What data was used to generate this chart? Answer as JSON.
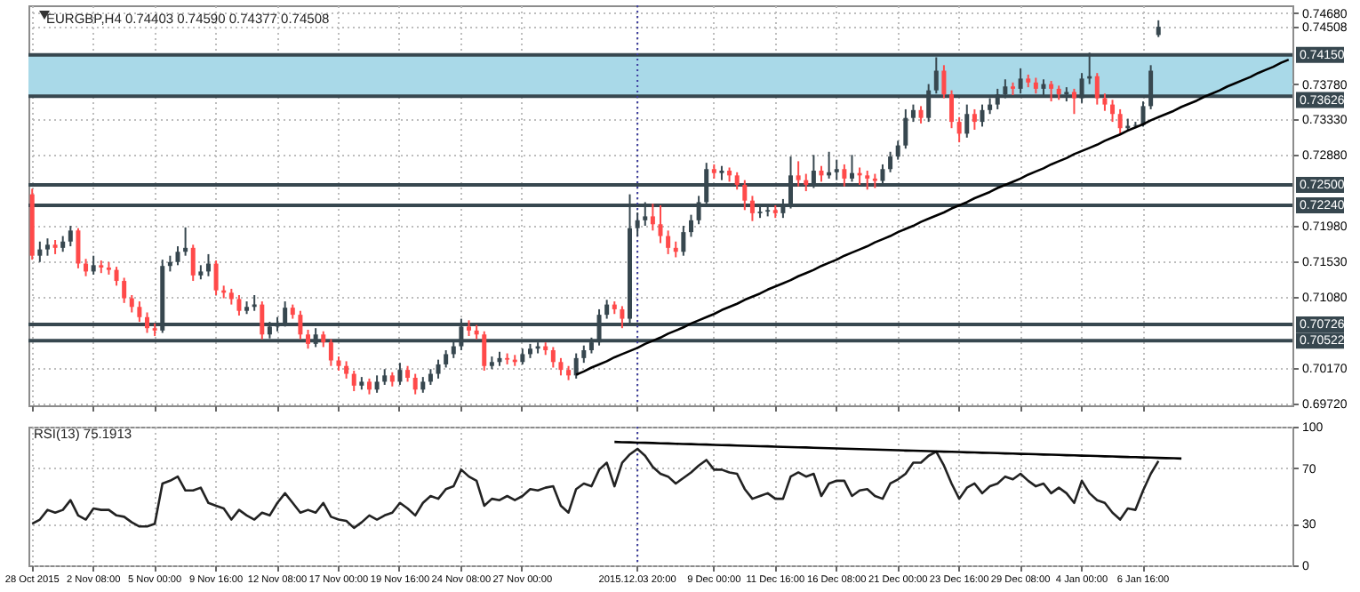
{
  "chart_data": [
    {
      "type": "candlestick",
      "title": "EURGBP,H4  0.74403 0.74590 0.74377 0.74508",
      "categories": [
        "28 Oct 2015",
        null,
        null,
        null,
        null,
        null,
        null,
        null,
        "2 Nov 08:00",
        null,
        null,
        null,
        null,
        null,
        null,
        null,
        "5 Nov 00:00",
        null,
        null,
        null,
        null,
        null,
        null,
        null,
        "9 Nov 16:00",
        null,
        null,
        null,
        null,
        null,
        null,
        null,
        "12 Nov 08:00",
        null,
        null,
        null,
        null,
        null,
        null,
        null,
        "17 Nov 00:00",
        null,
        null,
        null,
        null,
        null,
        null,
        null,
        "19 Nov 16:00",
        null,
        null,
        null,
        null,
        null,
        null,
        null,
        "24 Nov 08:00",
        null,
        null,
        null,
        null,
        null,
        null,
        null,
        "27 Nov 00:00",
        null,
        null,
        null,
        null,
        null,
        null,
        null,
        null,
        null,
        null,
        null,
        null,
        null,
        null,
        "2015.12.03 20:00",
        null,
        null,
        null,
        null,
        null,
        null,
        null,
        null,
        null,
        "9 Dec 00:00",
        null,
        null,
        null,
        null,
        null,
        null,
        null,
        "11 Dec 16:00",
        null,
        null,
        null,
        null,
        null,
        null,
        null,
        "16 Dec 08:00",
        null,
        null,
        null,
        null,
        null,
        null,
        null,
        "21 Dec 00:00",
        null,
        null,
        null,
        null,
        null,
        null,
        null,
        "23 Dec 16:00",
        null,
        null,
        null,
        null,
        null,
        null,
        null,
        "29 Dec 08:00",
        null,
        null,
        null,
        null,
        null,
        null,
        null,
        "4 Jan 00:00",
        null,
        null,
        null,
        null,
        null,
        null,
        null,
        "6 Jan 16:00",
        null,
        null,
        null,
        null,
        null,
        null,
        null,
        null,
        null,
        null,
        null,
        null,
        null,
        null,
        null,
        null,
        null,
        null,
        null
      ],
      "ohlc": [
        [
          0.7238,
          0.7245,
          0.7155,
          0.716
        ],
        [
          0.716,
          0.7178,
          0.7152,
          0.7168
        ],
        [
          0.7168,
          0.7182,
          0.716,
          0.7174
        ],
        [
          0.7174,
          0.718,
          0.7162,
          0.717
        ],
        [
          0.717,
          0.7185,
          0.7165,
          0.7178
        ],
        [
          0.7178,
          0.7198,
          0.7172,
          0.7192
        ],
        [
          0.7192,
          0.7195,
          0.7144,
          0.715
        ],
        [
          0.715,
          0.7156,
          0.7134,
          0.714
        ],
        [
          0.714,
          0.716,
          0.7136,
          0.7148
        ],
        [
          0.7148,
          0.7154,
          0.7138,
          0.7145
        ],
        [
          0.7145,
          0.7152,
          0.7136,
          0.7142
        ],
        [
          0.7142,
          0.7146,
          0.7122,
          0.7128
        ],
        [
          0.7128,
          0.7132,
          0.71,
          0.7106
        ],
        [
          0.7106,
          0.711,
          0.7088,
          0.7095
        ],
        [
          0.7095,
          0.7102,
          0.7076,
          0.7082
        ],
        [
          0.7082,
          0.7088,
          0.7062,
          0.7068
        ],
        [
          0.7068,
          0.7074,
          0.7058,
          0.7065
        ],
        [
          0.7065,
          0.7155,
          0.7062,
          0.7147
        ],
        [
          0.7147,
          0.716,
          0.714,
          0.7152
        ],
        [
          0.7152,
          0.7172,
          0.7148,
          0.7165
        ],
        [
          0.7165,
          0.7196,
          0.716,
          0.717
        ],
        [
          0.717,
          0.7174,
          0.7128,
          0.7135
        ],
        [
          0.7135,
          0.7148,
          0.713,
          0.714
        ],
        [
          0.714,
          0.7162,
          0.7134,
          0.715
        ],
        [
          0.715,
          0.7154,
          0.711,
          0.7116
        ],
        [
          0.7116,
          0.7122,
          0.7106,
          0.7113
        ],
        [
          0.7113,
          0.7118,
          0.7098,
          0.7105
        ],
        [
          0.7105,
          0.711,
          0.7084,
          0.709
        ],
        [
          0.709,
          0.7102,
          0.7086,
          0.7095
        ],
        [
          0.7095,
          0.711,
          0.709,
          0.7098
        ],
        [
          0.7098,
          0.7102,
          0.7054,
          0.706
        ],
        [
          0.706,
          0.7076,
          0.7055,
          0.707
        ],
        [
          0.707,
          0.7082,
          0.7064,
          0.7075
        ],
        [
          0.7075,
          0.7102,
          0.707,
          0.7094
        ],
        [
          0.7094,
          0.7098,
          0.708,
          0.7085
        ],
        [
          0.7085,
          0.709,
          0.7054,
          0.706
        ],
        [
          0.706,
          0.7066,
          0.7042,
          0.7048
        ],
        [
          0.7048,
          0.7068,
          0.7044,
          0.706
        ],
        [
          0.706,
          0.7064,
          0.7044,
          0.705
        ],
        [
          0.705,
          0.7054,
          0.702,
          0.7027
        ],
        [
          0.7027,
          0.7032,
          0.7014,
          0.702
        ],
        [
          0.702,
          0.7026,
          0.7004,
          0.701
        ],
        [
          0.701,
          0.7014,
          0.6988,
          0.6995
        ],
        [
          0.6995,
          0.7006,
          0.699,
          0.7
        ],
        [
          0.7,
          0.7004,
          0.6984,
          0.699
        ],
        [
          0.699,
          0.7008,
          0.6986,
          0.7
        ],
        [
          0.7,
          0.7016,
          0.6996,
          0.7008
        ],
        [
          0.7008,
          0.7012,
          0.6994,
          0.7
        ],
        [
          0.7,
          0.7024,
          0.6996,
          0.7015
        ],
        [
          0.7015,
          0.702,
          0.7,
          0.7005
        ],
        [
          0.7005,
          0.701,
          0.6984,
          0.699
        ],
        [
          0.699,
          0.7006,
          0.6986,
          0.7
        ],
        [
          0.7,
          0.7016,
          0.6996,
          0.701
        ],
        [
          0.701,
          0.7028,
          0.7004,
          0.7022
        ],
        [
          0.7022,
          0.704,
          0.7018,
          0.7035
        ],
        [
          0.7035,
          0.7052,
          0.703,
          0.7045
        ],
        [
          0.7045,
          0.708,
          0.704,
          0.707
        ],
        [
          0.707,
          0.7078,
          0.7058,
          0.7065
        ],
        [
          0.7065,
          0.7072,
          0.7054,
          0.706
        ],
        [
          0.706,
          0.7064,
          0.7014,
          0.702
        ],
        [
          0.702,
          0.7032,
          0.7016,
          0.7025
        ],
        [
          0.7025,
          0.7038,
          0.702,
          0.703
        ],
        [
          0.703,
          0.7036,
          0.7022,
          0.7028
        ],
        [
          0.7028,
          0.7034,
          0.702,
          0.7025
        ],
        [
          0.7025,
          0.7042,
          0.7022,
          0.7035
        ],
        [
          0.7035,
          0.7048,
          0.703,
          0.7042
        ],
        [
          0.7042,
          0.705,
          0.7036,
          0.7045
        ],
        [
          0.7045,
          0.705,
          0.7034,
          0.704
        ],
        [
          0.704,
          0.7044,
          0.7018,
          0.7025
        ],
        [
          0.7025,
          0.703,
          0.7008,
          0.7015
        ],
        [
          0.7015,
          0.702,
          0.7002,
          0.7008
        ],
        [
          0.7008,
          0.7036,
          0.7004,
          0.703
        ],
        [
          0.703,
          0.7046,
          0.7024,
          0.704
        ],
        [
          0.704,
          0.7056,
          0.7036,
          0.705
        ],
        [
          0.705,
          0.7092,
          0.7046,
          0.7085
        ],
        [
          0.7085,
          0.7104,
          0.708,
          0.7098
        ],
        [
          0.7098,
          0.7102,
          0.7086,
          0.7092
        ],
        [
          0.7092,
          0.7096,
          0.7068,
          0.708
        ],
        [
          0.708,
          0.7238,
          0.7074,
          0.7195
        ],
        [
          0.7195,
          0.7215,
          0.7185,
          0.7205
        ],
        [
          0.7205,
          0.7228,
          0.7198,
          0.721
        ],
        [
          0.721,
          0.7226,
          0.7192,
          0.72
        ],
        [
          0.72,
          0.7224,
          0.7176,
          0.7185
        ],
        [
          0.7185,
          0.7192,
          0.7162,
          0.717
        ],
        [
          0.717,
          0.7178,
          0.7158,
          0.7165
        ],
        [
          0.7165,
          0.7198,
          0.716,
          0.719
        ],
        [
          0.719,
          0.7212,
          0.7184,
          0.7205
        ],
        [
          0.7205,
          0.7236,
          0.72,
          0.7228
        ],
        [
          0.7228,
          0.7278,
          0.7222,
          0.727
        ],
        [
          0.727,
          0.7276,
          0.7258,
          0.7265
        ],
        [
          0.7265,
          0.7274,
          0.7256,
          0.7268
        ],
        [
          0.7268,
          0.7272,
          0.7254,
          0.7262
        ],
        [
          0.7262,
          0.7266,
          0.7244,
          0.725
        ],
        [
          0.725,
          0.7256,
          0.7218,
          0.723
        ],
        [
          0.723,
          0.7236,
          0.7204,
          0.7214
        ],
        [
          0.7214,
          0.7224,
          0.7208,
          0.7216
        ],
        [
          0.7216,
          0.7226,
          0.721,
          0.7218
        ],
        [
          0.7218,
          0.7224,
          0.7208,
          0.7214
        ],
        [
          0.7214,
          0.7232,
          0.7208,
          0.7225
        ],
        [
          0.7225,
          0.7286,
          0.722,
          0.7262
        ],
        [
          0.7262,
          0.728,
          0.7248,
          0.7256
        ],
        [
          0.7256,
          0.7264,
          0.7242,
          0.725
        ],
        [
          0.725,
          0.7288,
          0.7246,
          0.7268
        ],
        [
          0.7268,
          0.7274,
          0.7254,
          0.7262
        ],
        [
          0.7262,
          0.7292,
          0.7258,
          0.7266
        ],
        [
          0.7266,
          0.7282,
          0.7256,
          0.727
        ],
        [
          0.727,
          0.7276,
          0.7248,
          0.7258
        ],
        [
          0.7258,
          0.7288,
          0.7254,
          0.7265
        ],
        [
          0.7265,
          0.7272,
          0.725,
          0.7262
        ],
        [
          0.7262,
          0.7268,
          0.7244,
          0.7258
        ],
        [
          0.7258,
          0.7264,
          0.7246,
          0.7255
        ],
        [
          0.7255,
          0.7276,
          0.725,
          0.727
        ],
        [
          0.727,
          0.7292,
          0.7266,
          0.7286
        ],
        [
          0.7286,
          0.7306,
          0.7282,
          0.73
        ],
        [
          0.73,
          0.7346,
          0.7296,
          0.7335
        ],
        [
          0.7335,
          0.7352,
          0.733,
          0.7345
        ],
        [
          0.7345,
          0.735,
          0.7328,
          0.7335
        ],
        [
          0.7335,
          0.7378,
          0.733,
          0.737
        ],
        [
          0.737,
          0.7412,
          0.7366,
          0.7395
        ],
        [
          0.7395,
          0.7402,
          0.736,
          0.7365
        ],
        [
          0.7365,
          0.737,
          0.7322,
          0.733
        ],
        [
          0.733,
          0.7336,
          0.7304,
          0.7315
        ],
        [
          0.7315,
          0.7352,
          0.731,
          0.734
        ],
        [
          0.734,
          0.7346,
          0.732,
          0.733
        ],
        [
          0.733,
          0.7352,
          0.7324,
          0.7345
        ],
        [
          0.7345,
          0.736,
          0.734,
          0.7352
        ],
        [
          0.7352,
          0.7372,
          0.7346,
          0.7365
        ],
        [
          0.7365,
          0.7384,
          0.736,
          0.7375
        ],
        [
          0.7375,
          0.738,
          0.7364,
          0.7372
        ],
        [
          0.7372,
          0.7398,
          0.7366,
          0.7385
        ],
        [
          0.7385,
          0.739,
          0.7374,
          0.738
        ],
        [
          0.738,
          0.7386,
          0.7366,
          0.7372
        ],
        [
          0.7372,
          0.7384,
          0.7364,
          0.7378
        ],
        [
          0.7378,
          0.7382,
          0.7356,
          0.7372
        ],
        [
          0.7372,
          0.7376,
          0.7358,
          0.7365
        ],
        [
          0.7365,
          0.7374,
          0.7356,
          0.7368
        ],
        [
          0.7368,
          0.7372,
          0.734,
          0.736
        ],
        [
          0.736,
          0.7392,
          0.7354,
          0.7385
        ],
        [
          0.7385,
          0.7418,
          0.7378,
          0.7388
        ],
        [
          0.7388,
          0.7392,
          0.7352,
          0.736
        ],
        [
          0.736,
          0.7366,
          0.7344,
          0.7352
        ],
        [
          0.7352,
          0.7358,
          0.733,
          0.734
        ],
        [
          0.734,
          0.7346,
          0.7314,
          0.7322
        ],
        [
          0.7322,
          0.7334,
          0.7318,
          0.7325
        ],
        [
          0.7325,
          0.733,
          0.7322,
          0.7326
        ],
        [
          0.7326,
          0.7356,
          0.7324,
          0.735
        ],
        [
          0.735,
          0.7402,
          0.7346,
          0.7395
        ],
        [
          0.74403,
          0.7459,
          0.74377,
          0.74508
        ],
        null,
        null,
        null,
        null,
        null,
        null,
        null,
        null,
        null,
        null,
        null,
        null,
        null,
        null,
        null,
        null,
        null
      ],
      "series": [
        {
          "type": "line",
          "color": "#000000",
          "values": [
            null,
            null,
            null,
            null,
            null,
            null,
            null,
            null,
            null,
            null,
            null,
            null,
            null,
            null,
            null,
            null,
            null,
            null,
            null,
            null,
            null,
            null,
            null,
            null,
            null,
            null,
            null,
            null,
            null,
            null,
            null,
            null,
            null,
            null,
            null,
            null,
            null,
            null,
            null,
            null,
            null,
            null,
            null,
            null,
            null,
            null,
            null,
            null,
            null,
            null,
            null,
            null,
            null,
            null,
            null,
            null,
            null,
            null,
            null,
            null,
            null,
            null,
            null,
            null,
            null,
            null,
            null,
            null,
            null,
            null,
            null,
            0.7009,
            0.7013,
            0.7018,
            0.7022,
            0.7026,
            0.7031,
            0.7035,
            0.7039,
            0.7043,
            0.7048,
            0.7052,
            0.7056,
            0.7061,
            0.7065,
            0.7069,
            0.7074,
            0.7078,
            0.7082,
            0.7086,
            0.7091,
            0.7095,
            0.7099,
            0.7104,
            0.7108,
            0.7112,
            0.7117,
            0.7121,
            0.7125,
            0.7129,
            0.7134,
            0.7138,
            0.7142,
            0.7147,
            0.7151,
            0.7155,
            0.716,
            0.7164,
            0.7168,
            0.7172,
            0.7177,
            0.7181,
            0.7185,
            0.719,
            0.7194,
            0.7198,
            0.7203,
            0.7207,
            0.7211,
            0.7215,
            0.722,
            0.7224,
            0.7228,
            0.7233,
            0.7237,
            0.7241,
            0.7246,
            0.725,
            0.7254,
            0.7258,
            0.7263,
            0.7267,
            0.7271,
            0.7276,
            0.728,
            0.7284,
            0.7289,
            0.7293,
            0.7297,
            0.7301,
            0.7306,
            0.731,
            0.7314,
            0.7319,
            0.7323,
            0.7327,
            0.7332,
            0.7336,
            0.734,
            0.7344,
            0.7349,
            0.7353,
            0.7357,
            0.7362,
            0.7366,
            0.737,
            0.7375,
            0.7379,
            0.7383,
            0.7387,
            0.7392,
            0.7396,
            0.74,
            0.7405,
            0.7409
          ]
        }
      ],
      "ylim": [
        0.697,
        0.7478
      ],
      "yticks": [
        {
          "value": 0.6972,
          "label": "0.69720"
        },
        {
          "value": 0.7017,
          "label": "0.70170"
        },
        {
          "value": 0.7108,
          "label": "0.71080"
        },
        {
          "value": 0.7153,
          "label": "0.71530"
        },
        {
          "value": 0.7198,
          "label": "0.71980"
        },
        {
          "value": 0.7288,
          "label": "0.72880"
        },
        {
          "value": 0.7333,
          "label": "0.73330"
        },
        {
          "value": 0.7378,
          "label": "0.73780"
        },
        {
          "value": 0.74508,
          "label": "0.74508"
        },
        {
          "value": 0.7468,
          "label": "0.74680"
        }
      ],
      "bands": [
        {
          "axis": "y",
          "from": 0.73626,
          "to": 0.7415,
          "color": "#a9d9e8"
        }
      ],
      "ref_lines": [
        {
          "axis": "y",
          "value": 0.7415,
          "label": "0.74150",
          "color": "#37474f"
        },
        {
          "axis": "y",
          "value": 0.73626,
          "label": "0.73626",
          "color": "#37474f"
        },
        {
          "axis": "y",
          "value": 0.725,
          "label": "0.72500",
          "color": "#37474f"
        },
        {
          "axis": "y",
          "value": 0.7224,
          "label": "0.72240",
          "color": "#37474f"
        },
        {
          "axis": "y",
          "value": 0.70726,
          "label": "0.70726",
          "color": "#37474f"
        },
        {
          "axis": "y",
          "value": 0.70522,
          "label": "0.70522",
          "color": "#37474f"
        },
        {
          "axis": "x",
          "value": "2015.12.03 20:00",
          "color": "#3a3a9e",
          "line_style": "dotted"
        }
      ],
      "grid": true,
      "tick_labels": "y"
    },
    {
      "type": "line",
      "title": "RSI(13) 75.1913",
      "categories": [
        "28 Oct 2015",
        null,
        null,
        null,
        null,
        null,
        null,
        null,
        "2 Nov 08:00",
        null,
        null,
        null,
        null,
        null,
        null,
        null,
        "5 Nov 00:00",
        null,
        null,
        null,
        null,
        null,
        null,
        null,
        "9 Nov 16:00",
        null,
        null,
        null,
        null,
        null,
        null,
        null,
        "12 Nov 08:00",
        null,
        null,
        null,
        null,
        null,
        null,
        null,
        "17 Nov 00:00",
        null,
        null,
        null,
        null,
        null,
        null,
        null,
        "19 Nov 16:00",
        null,
        null,
        null,
        null,
        null,
        null,
        null,
        "24 Nov 08:00",
        null,
        null,
        null,
        null,
        null,
        null,
        null,
        "27 Nov 00:00",
        null,
        null,
        null,
        null,
        null,
        null,
        null,
        null,
        null,
        null,
        null,
        null,
        null,
        null,
        "2015.12.03 20:00",
        null,
        null,
        null,
        null,
        null,
        null,
        null,
        null,
        null,
        "9 Dec 00:00",
        null,
        null,
        null,
        null,
        null,
        null,
        null,
        "11 Dec 16:00",
        null,
        null,
        null,
        null,
        null,
        null,
        null,
        "16 Dec 08:00",
        null,
        null,
        null,
        null,
        null,
        null,
        null,
        "21 Dec 00:00",
        null,
        null,
        null,
        null,
        null,
        null,
        null,
        "23 Dec 16:00",
        null,
        null,
        null,
        null,
        null,
        null,
        null,
        "29 Dec 08:00",
        null,
        null,
        null,
        null,
        null,
        null,
        null,
        "4 Jan 00:00",
        null,
        null,
        null,
        null,
        null,
        null,
        null,
        "6 Jan 16:00",
        null,
        null,
        null,
        null,
        null,
        null,
        null,
        null,
        null,
        null,
        null,
        null,
        null,
        null,
        null,
        null,
        null,
        null,
        null
      ],
      "series": [
        {
          "color": "#222222",
          "values": [
            30,
            33,
            40,
            38,
            40,
            47,
            36,
            33,
            41,
            40,
            40,
            36,
            35,
            31,
            28,
            28,
            30,
            59,
            61,
            64,
            54,
            54,
            56,
            45,
            43,
            41,
            33,
            40,
            36,
            33,
            38,
            36,
            45,
            52,
            45,
            38,
            40,
            38,
            45,
            35,
            33,
            32,
            27,
            31,
            36,
            33,
            36,
            38,
            45,
            41,
            36,
            45,
            50,
            48,
            55,
            57,
            69,
            64,
            61,
            43,
            48,
            47,
            50,
            47,
            50,
            55,
            54,
            56,
            57,
            43,
            38,
            55,
            59,
            57,
            69,
            74,
            57,
            74,
            80,
            84,
            79,
            71,
            66,
            64,
            59,
            63,
            67,
            72,
            76,
            69,
            69,
            67,
            66,
            55,
            48,
            50,
            52,
            48,
            48,
            64,
            67,
            64,
            66,
            50,
            59,
            61,
            61,
            50,
            54,
            55,
            50,
            48,
            59,
            62,
            66,
            74,
            74,
            79,
            82,
            72,
            59,
            48,
            56,
            59,
            52,
            57,
            59,
            64,
            62,
            66,
            61,
            57,
            59,
            52,
            56,
            52,
            45,
            61,
            52,
            47,
            45,
            38,
            33,
            41,
            40,
            54,
            66,
            75.19,
            null,
            null,
            null,
            null,
            null,
            null,
            null,
            null,
            null,
            null,
            null,
            null,
            null,
            null,
            null,
            null,
            null
          ]
        },
        {
          "color": "#000000",
          "values": [
            null,
            null,
            null,
            null,
            null,
            null,
            null,
            null,
            null,
            null,
            null,
            null,
            null,
            null,
            null,
            null,
            null,
            null,
            null,
            null,
            null,
            null,
            null,
            null,
            null,
            null,
            null,
            null,
            null,
            null,
            null,
            null,
            null,
            null,
            null,
            null,
            null,
            null,
            null,
            null,
            null,
            null,
            null,
            null,
            null,
            null,
            null,
            null,
            null,
            null,
            null,
            null,
            null,
            null,
            null,
            null,
            null,
            null,
            null,
            null,
            null,
            null,
            null,
            null,
            null,
            null,
            null,
            null,
            null,
            null,
            null,
            null,
            null,
            null,
            null,
            null,
            89.0,
            88.8,
            88.7,
            88.5,
            88.4,
            88.2,
            88.0,
            87.9,
            87.7,
            87.5,
            87.4,
            87.2,
            87.1,
            86.9,
            86.7,
            86.6,
            86.4,
            86.2,
            86.1,
            85.9,
            85.8,
            85.6,
            85.4,
            85.3,
            85.1,
            85.0,
            84.8,
            84.6,
            84.5,
            84.3,
            84.1,
            84.0,
            83.8,
            83.7,
            83.5,
            83.3,
            83.2,
            83.0,
            82.8,
            82.7,
            82.5,
            82.4,
            82.2,
            82.0,
            81.9,
            81.7,
            81.5,
            81.4,
            81.2,
            81.1,
            80.9,
            80.7,
            80.6,
            80.4,
            80.3,
            80.1,
            79.9,
            79.8,
            79.6,
            79.4,
            79.3,
            79.1,
            79.0,
            78.8,
            78.6,
            78.5,
            78.3,
            78.1,
            78.0,
            77.8,
            77.7,
            77.5,
            77.3,
            77.2,
            77.0,
            null,
            null,
            null,
            null,
            null,
            null,
            null,
            null,
            null,
            null,
            null,
            null,
            null,
            null
          ]
        }
      ],
      "ylim": [
        0,
        100
      ],
      "yticks": [
        0,
        30,
        70,
        100
      ],
      "ref_lines": [
        {
          "axis": "x",
          "value": "2015.12.03 20:00",
          "color": "#3a3a9e",
          "line_style": "dotted"
        }
      ],
      "grid": true
    }
  ]
}
